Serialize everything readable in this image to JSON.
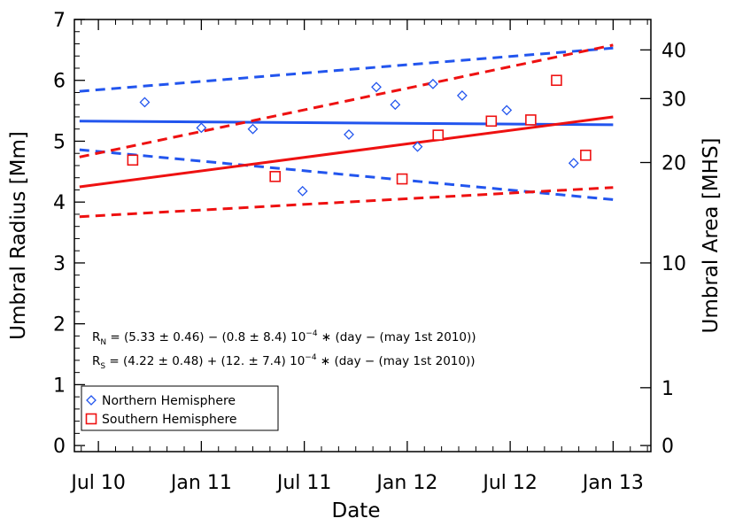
{
  "chart_data": {
    "type": "scatter",
    "xlabel": "Date",
    "ylabel_left": "Umbral Radius [Mm]",
    "ylabel_right": "Umbral Area [MHS]",
    "x_unit": "months since Jul 2010",
    "xlim": [
      -1.4,
      32.2
    ],
    "ylim": [
      -0.1,
      7.0
    ],
    "x_ticks": [
      {
        "label": "Jul 10",
        "value": 0
      },
      {
        "label": "Jan 11",
        "value": 6
      },
      {
        "label": "Jul 11",
        "value": 12
      },
      {
        "label": "Jan 12",
        "value": 18
      },
      {
        "label": "Jul 12",
        "value": 24
      },
      {
        "label": "Jan 13",
        "value": 30
      }
    ],
    "y_ticks_left": [
      "0",
      "1",
      "2",
      "3",
      "4",
      "5",
      "6",
      "7"
    ],
    "y_ticks_right": [
      {
        "label": "40",
        "radius": 6.5
      },
      {
        "label": "30",
        "radius": 5.7
      },
      {
        "label": "20",
        "radius": 4.65
      },
      {
        "label": "10",
        "radius": 3.0
      },
      {
        "label": "1",
        "radius": 0.95
      },
      {
        "label": "0",
        "radius": 0.0
      }
    ],
    "series": [
      {
        "name": "Northern Hemisphere",
        "marker": "diamond",
        "color": "#2255ee",
        "x": [
          2.7,
          6.0,
          9.0,
          11.9,
          14.6,
          16.2,
          17.3,
          18.6,
          19.5,
          21.2,
          23.8,
          27.7
        ],
        "y": [
          5.64,
          5.22,
          5.2,
          4.18,
          5.11,
          5.89,
          5.6,
          4.91,
          5.94,
          5.75,
          5.51,
          4.64
        ]
      },
      {
        "name": "Southern Hemisphere",
        "marker": "square",
        "color": "#ee1111",
        "x": [
          2.0,
          10.3,
          17.7,
          19.8,
          22.9,
          25.2,
          26.7,
          28.4
        ],
        "y": [
          4.69,
          4.42,
          4.38,
          5.1,
          5.33,
          5.35,
          6.0,
          4.77
        ]
      }
    ],
    "fit_lines": [
      {
        "series": "Northern Hemisphere",
        "style": "solid",
        "color": "#2255ee",
        "x": [
          -1.1,
          30.0
        ],
        "y": [
          5.33,
          5.27
        ]
      },
      {
        "series": "Northern Hemisphere",
        "style": "dashed",
        "color": "#2255ee",
        "x": [
          -1.1,
          30.0
        ],
        "y": [
          5.82,
          6.53
        ]
      },
      {
        "series": "Northern Hemisphere",
        "style": "dashed",
        "color": "#2255ee",
        "x": [
          -1.1,
          30.0
        ],
        "y": [
          4.86,
          4.04
        ]
      },
      {
        "series": "Southern Hemisphere",
        "style": "solid",
        "color": "#ee1111",
        "x": [
          -1.1,
          30.0
        ],
        "y": [
          4.25,
          5.4
        ]
      },
      {
        "series": "Southern Hemisphere",
        "style": "dashed",
        "color": "#ee1111",
        "x": [
          -1.1,
          30.0
        ],
        "y": [
          4.74,
          6.58
        ]
      },
      {
        "series": "Southern Hemisphere",
        "style": "dashed",
        "color": "#ee1111",
        "x": [
          -1.1,
          30.0
        ],
        "y": [
          3.76,
          4.24
        ]
      }
    ],
    "annotations": [
      {
        "prefix": "R",
        "sub": "N",
        "text": " = (5.33 ± 0.46) − (0.8 ± 8.4) 10",
        "sup": "−4",
        "tail": " ∗ (day − (may 1st 2010))"
      },
      {
        "prefix": "R",
        "sub": "S",
        "text": " = (4.22 ± 0.48) + (12. ± 7.4) 10",
        "sup": "−4",
        "tail": " ∗ (day − (may 1st 2010))"
      }
    ],
    "legend_position": "bottom-left"
  }
}
